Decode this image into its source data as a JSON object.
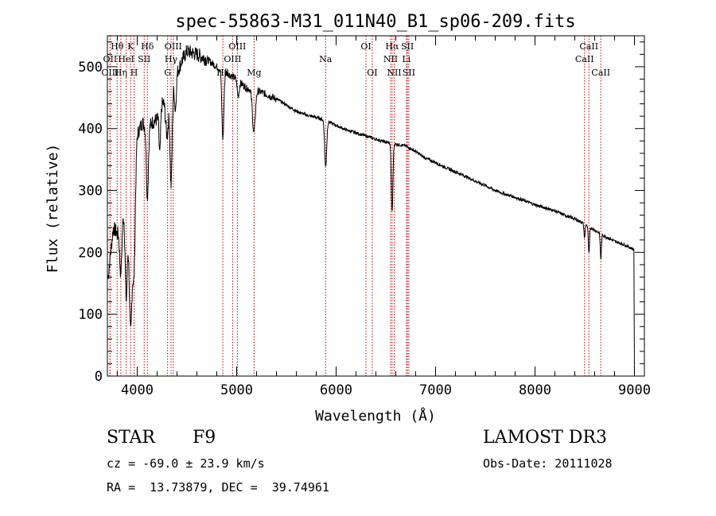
{
  "chart_data": {
    "type": "line",
    "title": "spec-55863-M31_011N40_B1_sp06-209.fits",
    "xlabel": "Wavelength (Å)",
    "ylabel": "Flux (relative)",
    "xlim": [
      3700,
      9100
    ],
    "ylim": [
      0,
      550
    ],
    "xticks": [
      4000,
      5000,
      6000,
      7000,
      8000,
      9000
    ],
    "yticks": [
      0,
      100,
      200,
      300,
      400,
      500
    ],
    "grid": false,
    "series": [
      {
        "name": "flux",
        "continuum": [
          [
            3700,
            150
          ],
          [
            3760,
            240
          ],
          [
            3800,
            230
          ],
          [
            3850,
            270
          ],
          [
            3900,
            250
          ],
          [
            3950,
            300
          ],
          [
            4000,
            390
          ],
          [
            4050,
            410
          ],
          [
            4100,
            400
          ],
          [
            4150,
            410
          ],
          [
            4200,
            415
          ],
          [
            4250,
            440
          ],
          [
            4300,
            450
          ],
          [
            4350,
            460
          ],
          [
            4400,
            490
          ],
          [
            4450,
            510
          ],
          [
            4500,
            525
          ],
          [
            4600,
            520
          ],
          [
            4700,
            512
          ],
          [
            4800,
            500
          ],
          [
            4900,
            490
          ],
          [
            5000,
            480
          ],
          [
            5100,
            465
          ],
          [
            5200,
            462
          ],
          [
            5300,
            455
          ],
          [
            5400,
            448
          ],
          [
            5500,
            438
          ],
          [
            5600,
            428
          ],
          [
            5700,
            422
          ],
          [
            5800,
            418
          ],
          [
            5900,
            413
          ],
          [
            6000,
            405
          ],
          [
            6100,
            398
          ],
          [
            6200,
            393
          ],
          [
            6300,
            388
          ],
          [
            6400,
            383
          ],
          [
            6500,
            378
          ],
          [
            6600,
            375
          ],
          [
            6700,
            372
          ],
          [
            6800,
            363
          ],
          [
            6900,
            352
          ],
          [
            7000,
            345
          ],
          [
            7100,
            337
          ],
          [
            7200,
            330
          ],
          [
            7300,
            323
          ],
          [
            7400,
            315
          ],
          [
            7500,
            308
          ],
          [
            7600,
            300
          ],
          [
            7700,
            294
          ],
          [
            7800,
            289
          ],
          [
            7900,
            283
          ],
          [
            8000,
            277
          ],
          [
            8100,
            272
          ],
          [
            8200,
            267
          ],
          [
            8300,
            260
          ],
          [
            8400,
            254
          ],
          [
            8500,
            246
          ],
          [
            8600,
            236
          ],
          [
            8700,
            226
          ],
          [
            8800,
            218
          ],
          [
            8900,
            212
          ],
          [
            8990,
            205
          ]
        ],
        "absorption": [
          [
            3835,
            90,
            12
          ],
          [
            3889,
            130,
            10
          ],
          [
            3934,
            210,
            14
          ],
          [
            3968,
            160,
            12
          ],
          [
            4102,
            110,
            10
          ],
          [
            4227,
            70,
            8
          ],
          [
            4300,
            60,
            14
          ],
          [
            4340,
            150,
            10
          ],
          [
            4384,
            50,
            8
          ],
          [
            4861,
            110,
            10
          ],
          [
            5015,
            25,
            10
          ],
          [
            5173,
            70,
            14
          ],
          [
            5895,
            75,
            10
          ],
          [
            6563,
            110,
            8
          ],
          [
            8498,
            22,
            6
          ],
          [
            8542,
            45,
            6
          ],
          [
            8662,
            40,
            6
          ]
        ]
      }
    ],
    "lines": [
      {
        "label": "Hθ",
        "wavelength": 3798,
        "row": 1
      },
      {
        "label": "OII",
        "wavelength": 3727,
        "row": 2
      },
      {
        "label": "OIII",
        "wavelength": 3727,
        "row": 3
      },
      {
        "label": "K",
        "wavelength": 3934,
        "row": 1
      },
      {
        "label": "HeI",
        "wavelength": 3889,
        "row": 2
      },
      {
        "label": "Hη",
        "wavelength": 3835,
        "row": 3
      },
      {
        "label": "Hδ",
        "wavelength": 4102,
        "row": 1
      },
      {
        "label": "SII",
        "wavelength": 4070,
        "row": 2
      },
      {
        "label": "H",
        "wavelength": 3968,
        "row": 3
      },
      {
        "label": "OIII",
        "wavelength": 4363,
        "row": 1
      },
      {
        "label": "Hγ",
        "wavelength": 4340,
        "row": 2
      },
      {
        "label": "G",
        "wavelength": 4305,
        "row": 3
      },
      {
        "label": "OIII",
        "wavelength": 5007,
        "row": 1
      },
      {
        "label": "OIII",
        "wavelength": 4959,
        "row": 2
      },
      {
        "label": "Hβ",
        "wavelength": 4861,
        "row": 3
      },
      {
        "label": "Mg",
        "wavelength": 5175,
        "row": 3
      },
      {
        "label": "Na",
        "wavelength": 5894,
        "row": 2
      },
      {
        "label": "OI",
        "wavelength": 6300,
        "row": 1
      },
      {
        "label": "OI",
        "wavelength": 6363,
        "row": 3
      },
      {
        "label": "Hα",
        "wavelength": 6563,
        "row": 1
      },
      {
        "label": "NII",
        "wavelength": 6548,
        "row": 2
      },
      {
        "label": "NII",
        "wavelength": 6584,
        "row": 3
      },
      {
        "label": "SII",
        "wavelength": 6717,
        "row": 1
      },
      {
        "label": "Li",
        "wavelength": 6707,
        "row": 2
      },
      {
        "label": "SII",
        "wavelength": 6731,
        "row": 3
      },
      {
        "label": "CaII",
        "wavelength": 8542,
        "row": 1
      },
      {
        "label": "CaII",
        "wavelength": 8498,
        "row": 2
      },
      {
        "label": "CaII",
        "wavelength": 8662,
        "row": 3
      }
    ],
    "colors": {
      "spectrum": "#000000",
      "lines": "#c00000",
      "axis": "#000000"
    }
  },
  "info": {
    "class": "STAR",
    "subclass": "F9",
    "survey": "LAMOST DR3",
    "redshift": "cz = -69.0 ± 23.9 km/s",
    "obs_date": "Obs-Date: 20111028",
    "coords": "RA =  13.73879, DEC =  39.74961"
  }
}
